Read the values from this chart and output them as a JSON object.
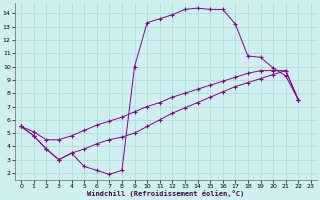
{
  "xlabel": "Windchill (Refroidissement éolien,°C)",
  "bg_color": "#cff0f0",
  "line_color": "#880088",
  "grid_color": "#aadddd",
  "xlim": [
    -0.5,
    23.5
  ],
  "ylim": [
    1.5,
    14.8
  ],
  "xticks": [
    0,
    1,
    2,
    3,
    4,
    5,
    6,
    7,
    8,
    9,
    10,
    11,
    12,
    13,
    14,
    15,
    16,
    17,
    18,
    19,
    20,
    21,
    22,
    23
  ],
  "yticks": [
    2,
    3,
    4,
    5,
    6,
    7,
    8,
    9,
    10,
    11,
    12,
    13,
    14
  ],
  "line1_x": [
    0,
    1,
    2,
    3,
    4,
    5,
    6,
    7,
    8,
    9,
    10,
    11,
    12,
    13,
    14,
    15,
    16,
    17,
    18,
    19,
    20,
    21,
    22
  ],
  "line1_y": [
    5.5,
    4.8,
    3.8,
    3.0,
    3.5,
    2.5,
    2.2,
    1.9,
    2.2,
    10.0,
    13.3,
    13.6,
    13.9,
    14.3,
    14.4,
    14.3,
    14.3,
    13.2,
    10.8,
    10.7,
    9.9,
    9.3,
    7.5
  ],
  "line2_x": [
    0,
    1,
    2,
    3,
    4,
    5,
    6,
    7,
    8,
    9,
    10,
    11,
    12,
    13,
    14,
    15,
    16,
    17,
    18,
    19,
    20,
    21,
    22
  ],
  "line2_y": [
    5.5,
    5.1,
    4.5,
    4.5,
    4.8,
    5.2,
    5.6,
    5.9,
    6.2,
    6.6,
    7.0,
    7.3,
    7.7,
    8.0,
    8.3,
    8.6,
    8.9,
    9.2,
    9.5,
    9.7,
    9.7,
    9.7,
    7.5
  ],
  "line3_x": [
    0,
    1,
    2,
    3,
    4,
    5,
    6,
    7,
    8,
    9,
    10,
    11,
    12,
    13,
    14,
    15,
    16,
    17,
    18,
    19,
    20,
    21,
    22
  ],
  "line3_y": [
    5.5,
    4.8,
    3.8,
    3.0,
    3.5,
    3.8,
    4.2,
    4.5,
    4.7,
    5.0,
    5.5,
    6.0,
    6.5,
    6.9,
    7.3,
    7.7,
    8.1,
    8.5,
    8.8,
    9.1,
    9.4,
    9.7,
    7.5
  ]
}
